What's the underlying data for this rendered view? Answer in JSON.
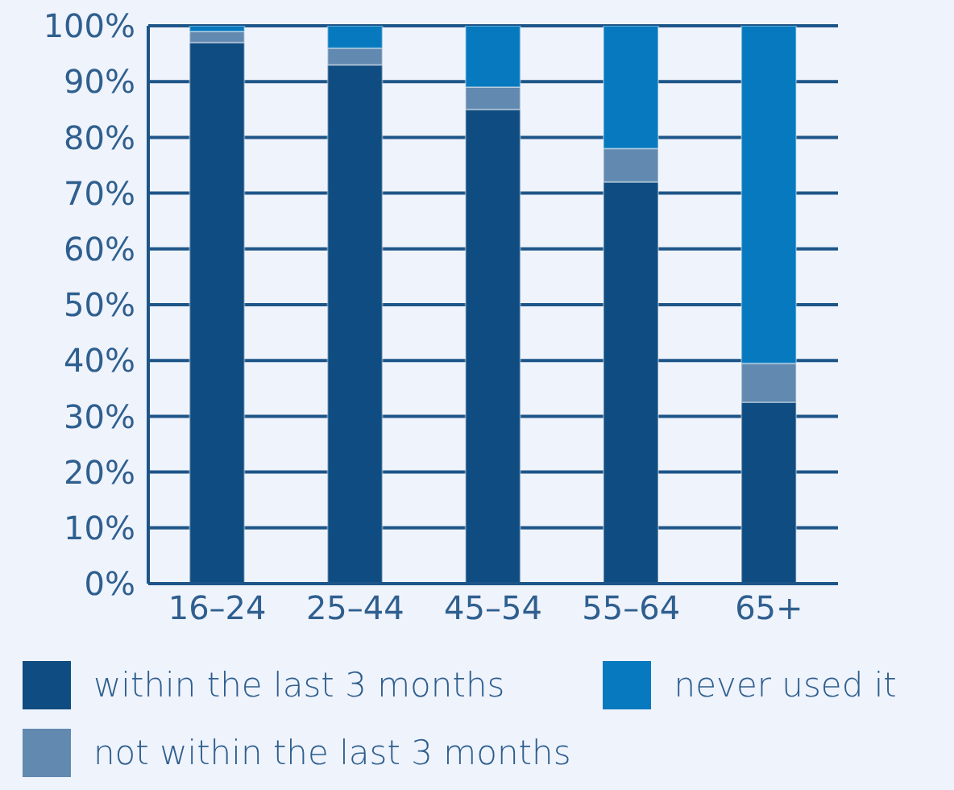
{
  "chart_data": {
    "type": "bar",
    "stacked": true,
    "categories": [
      "16–24",
      "25–44",
      "45–54",
      "55–64",
      "65+"
    ],
    "series": [
      {
        "name": "within the last 3 months",
        "color": "#0f4c81",
        "values": [
          97,
          93,
          85,
          72,
          32.5
        ]
      },
      {
        "name": "not within the last 3 months",
        "color": "#6289b0",
        "values": [
          2,
          3,
          4,
          6,
          7
        ]
      },
      {
        "name": "never used it",
        "color": "#0779be",
        "values": [
          1,
          4,
          11,
          22,
          60.5
        ]
      }
    ],
    "ylim": [
      0,
      100
    ],
    "yticks": [
      {
        "value": 0,
        "label": "0%"
      },
      {
        "value": 10,
        "label": "10%"
      },
      {
        "value": 20,
        "label": "20%"
      },
      {
        "value": 30,
        "label": "30%"
      },
      {
        "value": 40,
        "label": "40%"
      },
      {
        "value": 50,
        "label": "50%"
      },
      {
        "value": 60,
        "label": "60%"
      },
      {
        "value": 70,
        "label": "70%"
      },
      {
        "value": 80,
        "label": "80%"
      },
      {
        "value": 90,
        "label": "90%"
      },
      {
        "value": 100,
        "label": "100%"
      }
    ],
    "grid": "y",
    "legend": "bottom"
  }
}
